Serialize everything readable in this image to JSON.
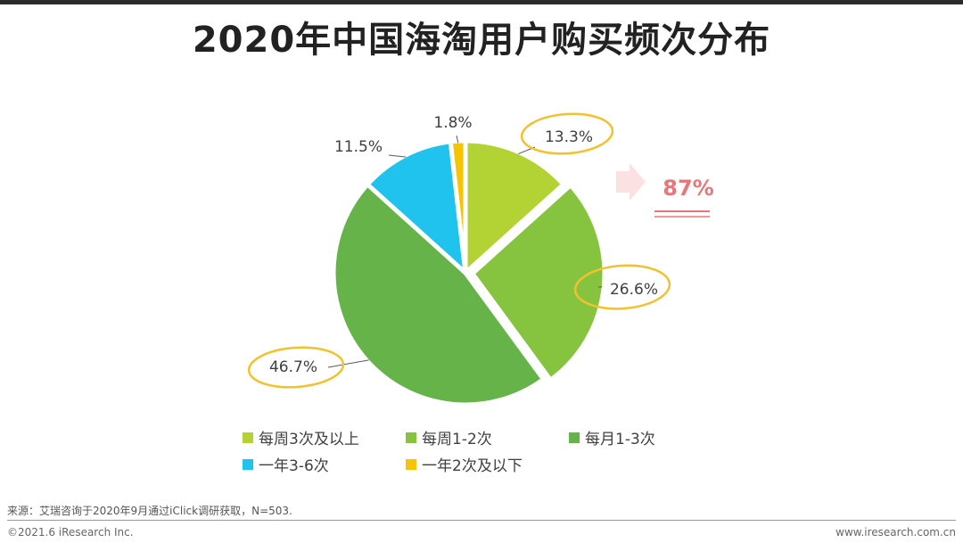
{
  "title": "2020年中国海淘用户购买频次分布",
  "chart_data": {
    "type": "pie",
    "title": "2020年中国海淘用户购买频次分布",
    "slices": [
      {
        "label": "每周3次及以上",
        "value": 13.3,
        "display": "13.3%",
        "color": "#b3d233",
        "exploded": false,
        "highlight": true
      },
      {
        "label": "每周1-2次",
        "value": 26.6,
        "display": "26.6%",
        "color": "#86c440",
        "exploded": true,
        "highlight": true
      },
      {
        "label": "每月1-3次",
        "value": 46.7,
        "display": "46.7%",
        "color": "#66b34a",
        "exploded": false,
        "highlight": true
      },
      {
        "label": "一年3-6次",
        "value": 11.5,
        "display": "11.5%",
        "color": "#1fc3ee",
        "exploded": false,
        "highlight": false
      },
      {
        "label": "一年2次及以下",
        "value": 1.8,
        "display": "1.8%",
        "color": "#f6c400",
        "exploded": false,
        "highlight": false
      }
    ],
    "annotation": {
      "text": "87%",
      "color": "#e8777b"
    }
  },
  "source": "来源：艾瑞咨询于2020年9月通过iClick调研获取，N=503.",
  "copyright": "©2021.6 iResearch Inc.",
  "website": "www.iresearch.com.cn",
  "colors": {
    "circle": "#f2c12e",
    "arrow": "#fbe1e2"
  }
}
